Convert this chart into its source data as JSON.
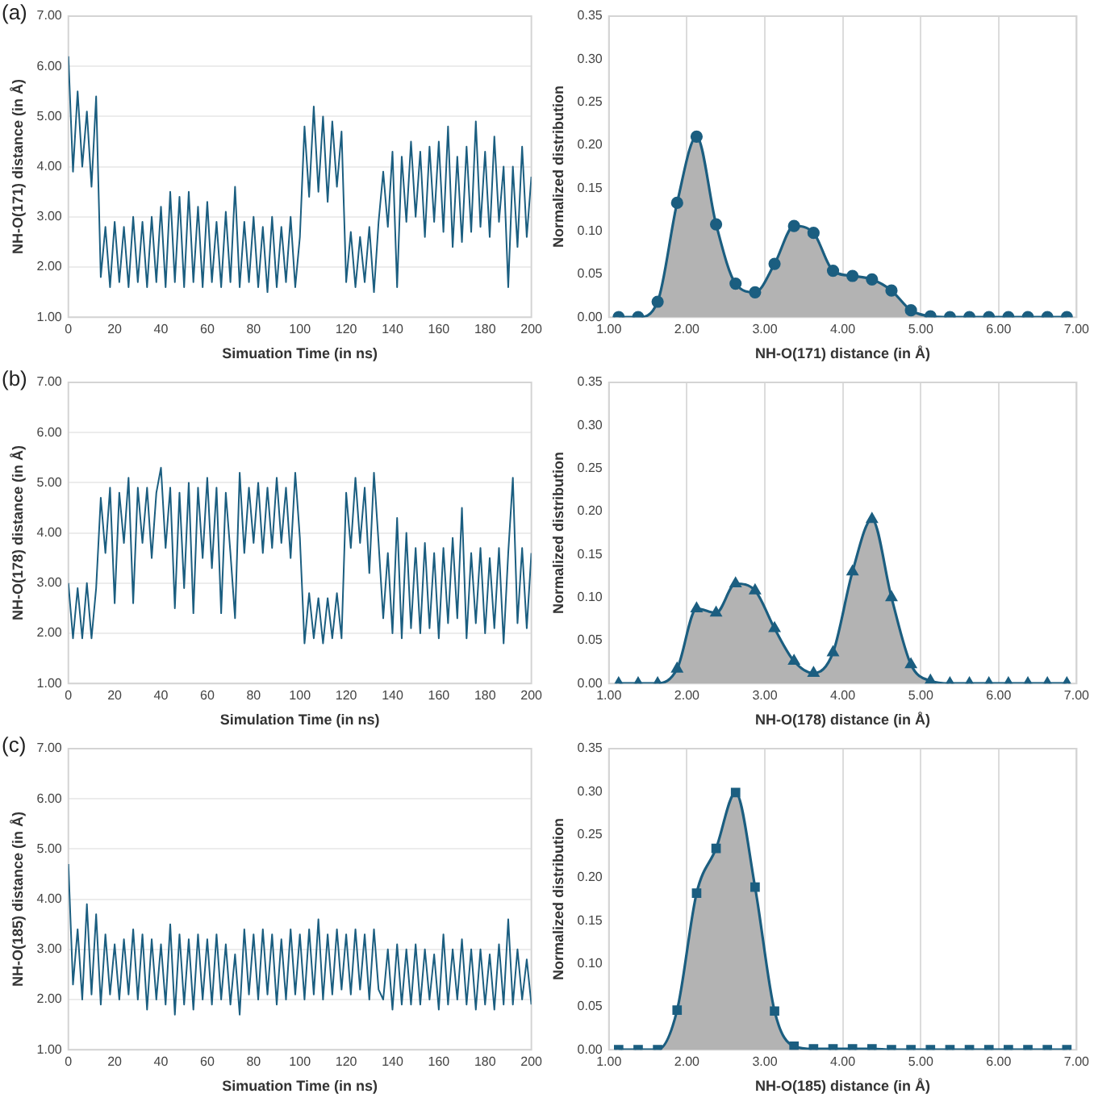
{
  "chart_data": [
    {
      "type": "line",
      "annotations": [
        "(a)"
      ],
      "xlabel": "Simuation Time (in ns)",
      "ylabel": "NH-O(171) distance (in Å)",
      "xlim": [
        0,
        200
      ],
      "xticks": [
        0,
        20,
        40,
        60,
        80,
        100,
        120,
        140,
        160,
        180,
        200
      ],
      "ylim": [
        1,
        7
      ],
      "yticks": [
        {
          "value": 1,
          "label": "1.00"
        },
        {
          "value": 2,
          "label": "2.00"
        },
        {
          "value": 3,
          "label": "3.00"
        },
        {
          "value": 4,
          "label": "4.00"
        },
        {
          "value": 5,
          "label": "5.00"
        },
        {
          "value": 6,
          "label": "6.00"
        },
        {
          "value": 7,
          "label": "7.00"
        }
      ],
      "grid": "y",
      "x": [
        0,
        2,
        4,
        6,
        8,
        10,
        12,
        14,
        16,
        18,
        20,
        22,
        24,
        26,
        28,
        30,
        32,
        34,
        36,
        38,
        40,
        42,
        44,
        46,
        48,
        50,
        52,
        54,
        56,
        58,
        60,
        62,
        64,
        66,
        68,
        70,
        72,
        74,
        76,
        78,
        80,
        82,
        84,
        86,
        88,
        90,
        92,
        94,
        96,
        98,
        100,
        102,
        104,
        106,
        108,
        110,
        112,
        114,
        116,
        118,
        120,
        122,
        124,
        126,
        128,
        130,
        132,
        134,
        136,
        138,
        140,
        142,
        144,
        146,
        148,
        150,
        152,
        154,
        156,
        158,
        160,
        162,
        164,
        166,
        168,
        170,
        172,
        174,
        176,
        178,
        180,
        182,
        184,
        186,
        188,
        190,
        192,
        194,
        196,
        198,
        200
      ],
      "series": [
        {
          "color": "#1b5e80",
          "values": [
            6.2,
            3.9,
            5.5,
            4.0,
            5.1,
            3.6,
            5.4,
            1.8,
            2.8,
            1.6,
            2.9,
            1.7,
            2.8,
            1.6,
            3.0,
            1.7,
            2.9,
            1.6,
            3.0,
            1.7,
            3.2,
            1.6,
            3.5,
            1.7,
            3.4,
            1.6,
            3.5,
            1.7,
            3.2,
            1.6,
            3.3,
            1.7,
            2.9,
            1.6,
            3.1,
            1.7,
            3.6,
            1.6,
            2.9,
            1.7,
            3.0,
            1.6,
            2.8,
            1.5,
            3.0,
            1.6,
            2.8,
            1.7,
            3.0,
            1.6,
            2.6,
            4.8,
            3.4,
            5.2,
            3.5,
            5.0,
            3.3,
            4.9,
            3.6,
            4.7,
            1.7,
            2.7,
            1.6,
            2.6,
            1.7,
            2.8,
            1.5,
            2.9,
            3.9,
            2.8,
            4.3,
            1.6,
            4.2,
            2.9,
            4.5,
            3.0,
            4.3,
            2.6,
            4.4,
            2.9,
            4.5,
            2.7,
            4.8,
            2.4,
            4.2,
            2.5,
            4.4,
            2.7,
            4.9,
            2.8,
            4.3,
            2.6,
            4.6,
            2.9,
            4.0,
            1.6,
            4.0,
            2.4,
            4.4,
            2.6,
            3.8
          ]
        }
      ]
    },
    {
      "type": "area",
      "xlabel": "NH-O(171) distance (in Å)",
      "ylabel": "Normalized distribution",
      "xlim": [
        1,
        7
      ],
      "xticks": [
        {
          "value": 1,
          "label": "1.00"
        },
        {
          "value": 2,
          "label": "2.00"
        },
        {
          "value": 3,
          "label": "3.00"
        },
        {
          "value": 4,
          "label": "4.00"
        },
        {
          "value": 5,
          "label": "5.00"
        },
        {
          "value": 6,
          "label": "6.00"
        },
        {
          "value": 7,
          "label": "7.00"
        }
      ],
      "ylim": [
        0,
        0.35
      ],
      "yticks": [
        {
          "value": 0,
          "label": "0.00"
        },
        {
          "value": 0.05,
          "label": "0.05"
        },
        {
          "value": 0.1,
          "label": "0.10"
        },
        {
          "value": 0.15,
          "label": "0.15"
        },
        {
          "value": 0.2,
          "label": "0.20"
        },
        {
          "value": 0.25,
          "label": "0.25"
        },
        {
          "value": 0.3,
          "label": "0.30"
        },
        {
          "value": 0.35,
          "label": "0.35"
        }
      ],
      "grid": "x",
      "marker": "circle",
      "x": [
        1.125,
        1.375,
        1.625,
        1.875,
        2.125,
        2.375,
        2.625,
        2.875,
        3.125,
        3.375,
        3.625,
        3.875,
        4.125,
        4.375,
        4.625,
        4.875,
        5.125,
        5.375,
        5.625,
        5.875,
        6.125,
        6.375,
        6.625,
        6.875
      ],
      "series": [
        {
          "color": "#1b5e80",
          "values": [
            0,
            0,
            0.018,
            0.133,
            0.21,
            0.108,
            0.039,
            0.029,
            0.062,
            0.106,
            0.098,
            0.054,
            0.048,
            0.044,
            0.031,
            0.008,
            0.001,
            0,
            0,
            0,
            0,
            0,
            0,
            0
          ]
        }
      ]
    },
    {
      "type": "line",
      "annotations": [
        "(b)"
      ],
      "xlabel": "Simulation Time (in ns)",
      "ylabel": "NH-O(178) distance (in Å)",
      "xlim": [
        0,
        200
      ],
      "xticks": [
        0,
        20,
        40,
        60,
        80,
        100,
        120,
        140,
        160,
        180,
        200
      ],
      "ylim": [
        1,
        7
      ],
      "yticks": [
        {
          "value": 1,
          "label": "1.00"
        },
        {
          "value": 2,
          "label": "2.00"
        },
        {
          "value": 3,
          "label": "3.00"
        },
        {
          "value": 4,
          "label": "4.00"
        },
        {
          "value": 5,
          "label": "5.00"
        },
        {
          "value": 6,
          "label": "6.00"
        },
        {
          "value": 7,
          "label": "7.00"
        }
      ],
      "grid": "y",
      "x": [
        0,
        2,
        4,
        6,
        8,
        10,
        12,
        14,
        16,
        18,
        20,
        22,
        24,
        26,
        28,
        30,
        32,
        34,
        36,
        38,
        40,
        42,
        44,
        46,
        48,
        50,
        52,
        54,
        56,
        58,
        60,
        62,
        64,
        66,
        68,
        70,
        72,
        74,
        76,
        78,
        80,
        82,
        84,
        86,
        88,
        90,
        92,
        94,
        96,
        98,
        100,
        102,
        104,
        106,
        108,
        110,
        112,
        114,
        116,
        118,
        120,
        122,
        124,
        126,
        128,
        130,
        132,
        134,
        136,
        138,
        140,
        142,
        144,
        146,
        148,
        150,
        152,
        154,
        156,
        158,
        160,
        162,
        164,
        166,
        168,
        170,
        172,
        174,
        176,
        178,
        180,
        182,
        184,
        186,
        188,
        190,
        192,
        194,
        196,
        198,
        200
      ],
      "series": [
        {
          "color": "#1b5e80",
          "values": [
            3.0,
            1.9,
            2.9,
            1.9,
            3.0,
            1.9,
            2.9,
            4.7,
            3.6,
            4.9,
            2.6,
            4.8,
            3.8,
            5.1,
            2.6,
            4.9,
            3.8,
            4.9,
            3.5,
            4.8,
            5.3,
            3.7,
            4.9,
            2.5,
            4.8,
            2.9,
            5.0,
            2.4,
            4.9,
            3.5,
            5.1,
            3.3,
            4.9,
            2.4,
            4.8,
            3.6,
            2.3,
            5.2,
            3.6,
            4.9,
            3.8,
            5.0,
            3.6,
            4.9,
            3.7,
            5.1,
            3.8,
            4.9,
            3.5,
            5.2,
            3.9,
            1.8,
            2.8,
            1.9,
            2.7,
            1.8,
            2.7,
            1.9,
            2.8,
            1.9,
            4.8,
            3.7,
            5.1,
            3.8,
            4.9,
            3.2,
            5.2,
            3.8,
            2.3,
            3.6,
            2.0,
            4.3,
            1.9,
            4.0,
            2.1,
            3.7,
            2.0,
            3.8,
            2.1,
            3.6,
            1.9,
            3.7,
            2.2,
            3.9,
            2.3,
            4.5,
            1.9,
            3.6,
            2.2,
            3.7,
            2.0,
            3.5,
            2.1,
            3.7,
            1.8,
            3.6,
            5.1,
            2.2,
            3.7,
            2.1,
            3.6
          ]
        }
      ]
    },
    {
      "type": "area",
      "xlabel": "NH-O(178) distance (in Å)",
      "ylabel": "Normalized distribution",
      "xlim": [
        1,
        7
      ],
      "xticks": [
        {
          "value": 1,
          "label": "1.00"
        },
        {
          "value": 2,
          "label": "2.00"
        },
        {
          "value": 3,
          "label": "3.00"
        },
        {
          "value": 4,
          "label": "4.00"
        },
        {
          "value": 5,
          "label": "5.00"
        },
        {
          "value": 6,
          "label": "6.00"
        },
        {
          "value": 7,
          "label": "7.00"
        }
      ],
      "ylim": [
        0,
        0.35
      ],
      "yticks": [
        {
          "value": 0,
          "label": "0.00"
        },
        {
          "value": 0.05,
          "label": "0.05"
        },
        {
          "value": 0.1,
          "label": "0.10"
        },
        {
          "value": 0.15,
          "label": "0.15"
        },
        {
          "value": 0.2,
          "label": "0.20"
        },
        {
          "value": 0.25,
          "label": "0.25"
        },
        {
          "value": 0.3,
          "label": "0.30"
        },
        {
          "value": 0.35,
          "label": "0.35"
        }
      ],
      "grid": "x",
      "marker": "triangle",
      "x": [
        1.125,
        1.375,
        1.625,
        1.875,
        2.125,
        2.375,
        2.625,
        2.875,
        3.125,
        3.375,
        3.625,
        3.875,
        4.125,
        4.375,
        4.625,
        4.875,
        5.125,
        5.375,
        5.625,
        5.875,
        6.125,
        6.375,
        6.625,
        6.875
      ],
      "series": [
        {
          "color": "#1b5e80",
          "values": [
            0,
            0,
            0,
            0.017,
            0.087,
            0.082,
            0.116,
            0.108,
            0.064,
            0.026,
            0.012,
            0.036,
            0.13,
            0.191,
            0.1,
            0.022,
            0.003,
            0,
            0,
            0,
            0,
            0,
            0,
            0
          ]
        }
      ]
    },
    {
      "type": "line",
      "annotations": [
        "(c)"
      ],
      "xlabel": "Simuation Time (in ns)",
      "ylabel": "NH-O(185) distance (in Å)",
      "xlim": [
        0,
        200
      ],
      "xticks": [
        0,
        20,
        40,
        60,
        80,
        100,
        120,
        140,
        160,
        180,
        200
      ],
      "ylim": [
        1,
        7
      ],
      "yticks": [
        {
          "value": 1,
          "label": "1.00"
        },
        {
          "value": 2,
          "label": "2.00"
        },
        {
          "value": 3,
          "label": "3.00"
        },
        {
          "value": 4,
          "label": "4.00"
        },
        {
          "value": 5,
          "label": "5.00"
        },
        {
          "value": 6,
          "label": "6.00"
        },
        {
          "value": 7,
          "label": "7.00"
        }
      ],
      "grid": "y",
      "x": [
        0,
        2,
        4,
        6,
        8,
        10,
        12,
        14,
        16,
        18,
        20,
        22,
        24,
        26,
        28,
        30,
        32,
        34,
        36,
        38,
        40,
        42,
        44,
        46,
        48,
        50,
        52,
        54,
        56,
        58,
        60,
        62,
        64,
        66,
        68,
        70,
        72,
        74,
        76,
        78,
        80,
        82,
        84,
        86,
        88,
        90,
        92,
        94,
        96,
        98,
        100,
        102,
        104,
        106,
        108,
        110,
        112,
        114,
        116,
        118,
        120,
        122,
        124,
        126,
        128,
        130,
        132,
        134,
        136,
        138,
        140,
        142,
        144,
        146,
        148,
        150,
        152,
        154,
        156,
        158,
        160,
        162,
        164,
        166,
        168,
        170,
        172,
        174,
        176,
        178,
        180,
        182,
        184,
        186,
        188,
        190,
        192,
        194,
        196,
        198,
        200
      ],
      "series": [
        {
          "color": "#1b5e80",
          "values": [
            4.7,
            2.3,
            3.4,
            2.0,
            3.9,
            2.1,
            3.7,
            1.9,
            3.3,
            2.1,
            3.1,
            2.0,
            3.2,
            2.1,
            3.4,
            2.0,
            3.3,
            1.8,
            3.2,
            2.0,
            3.1,
            1.9,
            3.5,
            1.7,
            3.3,
            1.9,
            3.2,
            1.8,
            3.3,
            2.0,
            3.2,
            1.9,
            3.3,
            2.0,
            3.1,
            1.9,
            2.9,
            1.7,
            3.4,
            2.1,
            3.3,
            2.0,
            3.4,
            2.1,
            3.3,
            1.9,
            3.2,
            2.0,
            3.4,
            2.1,
            3.3,
            2.0,
            3.4,
            2.1,
            3.6,
            2.0,
            3.3,
            2.1,
            3.4,
            2.2,
            3.3,
            2.1,
            3.4,
            2.2,
            3.3,
            2.0,
            3.4,
            2.2,
            2.0,
            3.0,
            1.8,
            3.1,
            1.9,
            3.0,
            1.9,
            3.1,
            1.9,
            3.0,
            2.0,
            2.9,
            1.8,
            3.3,
            1.9,
            3.0,
            2.0,
            3.2,
            1.9,
            3.0,
            1.8,
            3.0,
            1.9,
            2.9,
            1.8,
            3.1,
            1.9,
            3.6,
            1.9,
            3.0,
            2.0,
            2.8,
            1.9
          ]
        }
      ]
    },
    {
      "type": "area",
      "xlabel": "NH-O(185) distance (in Å)",
      "ylabel": "Normalized distribution",
      "xlim": [
        1,
        7
      ],
      "xticks": [
        {
          "value": 1,
          "label": "1.00"
        },
        {
          "value": 2,
          "label": "2.00"
        },
        {
          "value": 3,
          "label": "3.00"
        },
        {
          "value": 4,
          "label": "4.00"
        },
        {
          "value": 5,
          "label": "5.00"
        },
        {
          "value": 6,
          "label": "6.00"
        },
        {
          "value": 7,
          "label": "7.00"
        }
      ],
      "ylim": [
        0,
        0.35
      ],
      "yticks": [
        {
          "value": 0,
          "label": "0.00"
        },
        {
          "value": 0.05,
          "label": "0.05"
        },
        {
          "value": 0.1,
          "label": "0.10"
        },
        {
          "value": 0.15,
          "label": "0.15"
        },
        {
          "value": 0.2,
          "label": "0.20"
        },
        {
          "value": 0.25,
          "label": "0.25"
        },
        {
          "value": 0.3,
          "label": "0.30"
        },
        {
          "value": 0.35,
          "label": "0.35"
        }
      ],
      "grid": "x",
      "marker": "square",
      "x": [
        1.125,
        1.375,
        1.625,
        1.875,
        2.125,
        2.375,
        2.625,
        2.875,
        3.125,
        3.375,
        3.625,
        3.875,
        4.125,
        4.375,
        4.625,
        4.875,
        5.125,
        5.375,
        5.625,
        5.875,
        6.125,
        6.375,
        6.625,
        6.875
      ],
      "series": [
        {
          "color": "#1b5e80",
          "values": [
            0,
            0,
            0,
            0.046,
            0.182,
            0.234,
            0.299,
            0.189,
            0.045,
            0.004,
            0.001,
            0.001,
            0.001,
            0.001,
            0,
            0,
            0,
            0,
            0,
            0,
            0,
            0,
            0,
            0
          ]
        }
      ]
    }
  ]
}
